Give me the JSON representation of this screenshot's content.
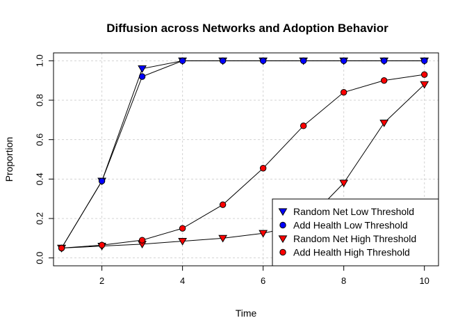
{
  "chart_data": {
    "type": "line",
    "title": "Diffusion across Networks and Adoption Behavior",
    "xlabel": "Time",
    "ylabel": "Proportion",
    "xlim": [
      0.8,
      10.35
    ],
    "ylim": [
      -0.04,
      1.04
    ],
    "x_ticks": [
      2,
      4,
      6,
      8,
      10
    ],
    "y_ticks": [
      0.0,
      0.2,
      0.4,
      0.6,
      0.8,
      1.0
    ],
    "x_tick_labels": [
      "2",
      "4",
      "6",
      "8",
      "10"
    ],
    "y_tick_labels": [
      "0.0",
      "0.2",
      "0.4",
      "0.6",
      "0.8",
      "1.0"
    ],
    "grid": true,
    "legend_position": "bottom-right",
    "x": [
      1,
      2,
      3,
      4,
      5,
      6,
      7,
      8,
      9,
      10
    ],
    "series": [
      {
        "name": "Random Net Low Threshold",
        "marker": "triangle-down",
        "color": "#0000ff",
        "values": [
          0.05,
          0.39,
          0.96,
          1.0,
          1.0,
          1.0,
          1.0,
          1.0,
          1.0,
          1.0
        ]
      },
      {
        "name": "Add Health Low Threshold",
        "marker": "circle",
        "color": "#0000ff",
        "values": [
          0.05,
          0.39,
          0.92,
          1.0,
          1.0,
          1.0,
          1.0,
          1.0,
          1.0,
          1.0
        ]
      },
      {
        "name": "Random Net High Threshold",
        "marker": "triangle-down",
        "color": "#ff0000",
        "values": [
          0.05,
          0.06,
          0.07,
          0.085,
          0.1,
          0.125,
          0.17,
          0.38,
          0.685,
          0.88
        ]
      },
      {
        "name": "Add Health High Threshold",
        "marker": "circle",
        "color": "#ff0000",
        "values": [
          0.05,
          0.065,
          0.09,
          0.15,
          0.27,
          0.455,
          0.67,
          0.84,
          0.9,
          0.93
        ]
      }
    ]
  }
}
